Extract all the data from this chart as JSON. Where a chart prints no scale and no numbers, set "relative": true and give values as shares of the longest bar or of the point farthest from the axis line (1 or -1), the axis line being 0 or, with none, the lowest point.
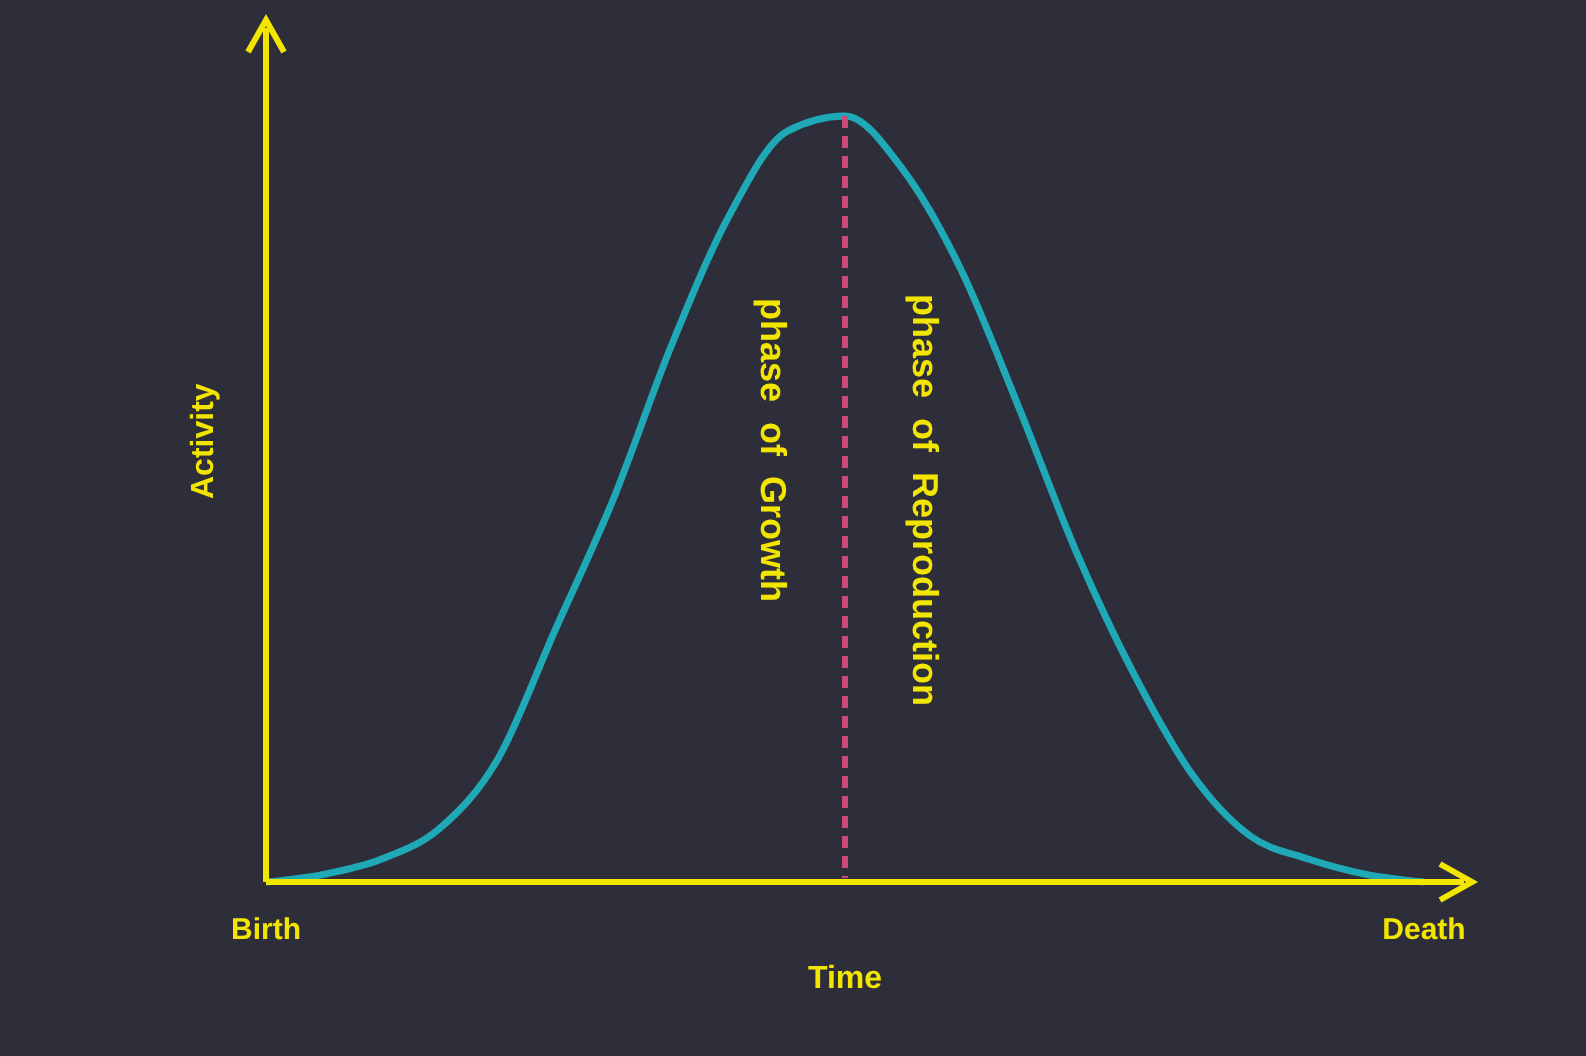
{
  "chart_data": {
    "type": "line",
    "relative": true,
    "xlabel": "Time",
    "ylabel": "Activity",
    "categories": [
      "Birth",
      null,
      null,
      null,
      null,
      null,
      null,
      null,
      null,
      null,
      null,
      null,
      null,
      null,
      null,
      null,
      null,
      null,
      null,
      null,
      "Death"
    ],
    "series": [
      {
        "color": "#1fa9b6",
        "values": [
          0,
          0.01,
          0.03,
          0.07,
          0.16,
          0.33,
          0.5,
          0.7,
          0.87,
          0.98,
          1,
          0.93,
          0.8,
          0.62,
          0.43,
          0.27,
          0.14,
          0.06,
          0.03,
          0.01,
          0
        ]
      }
    ],
    "annotations": [
      "phase  of  Growth",
      "phase  of  Reproduction"
    ],
    "marker": "none",
    "grid": false,
    "legend": false
  }
}
